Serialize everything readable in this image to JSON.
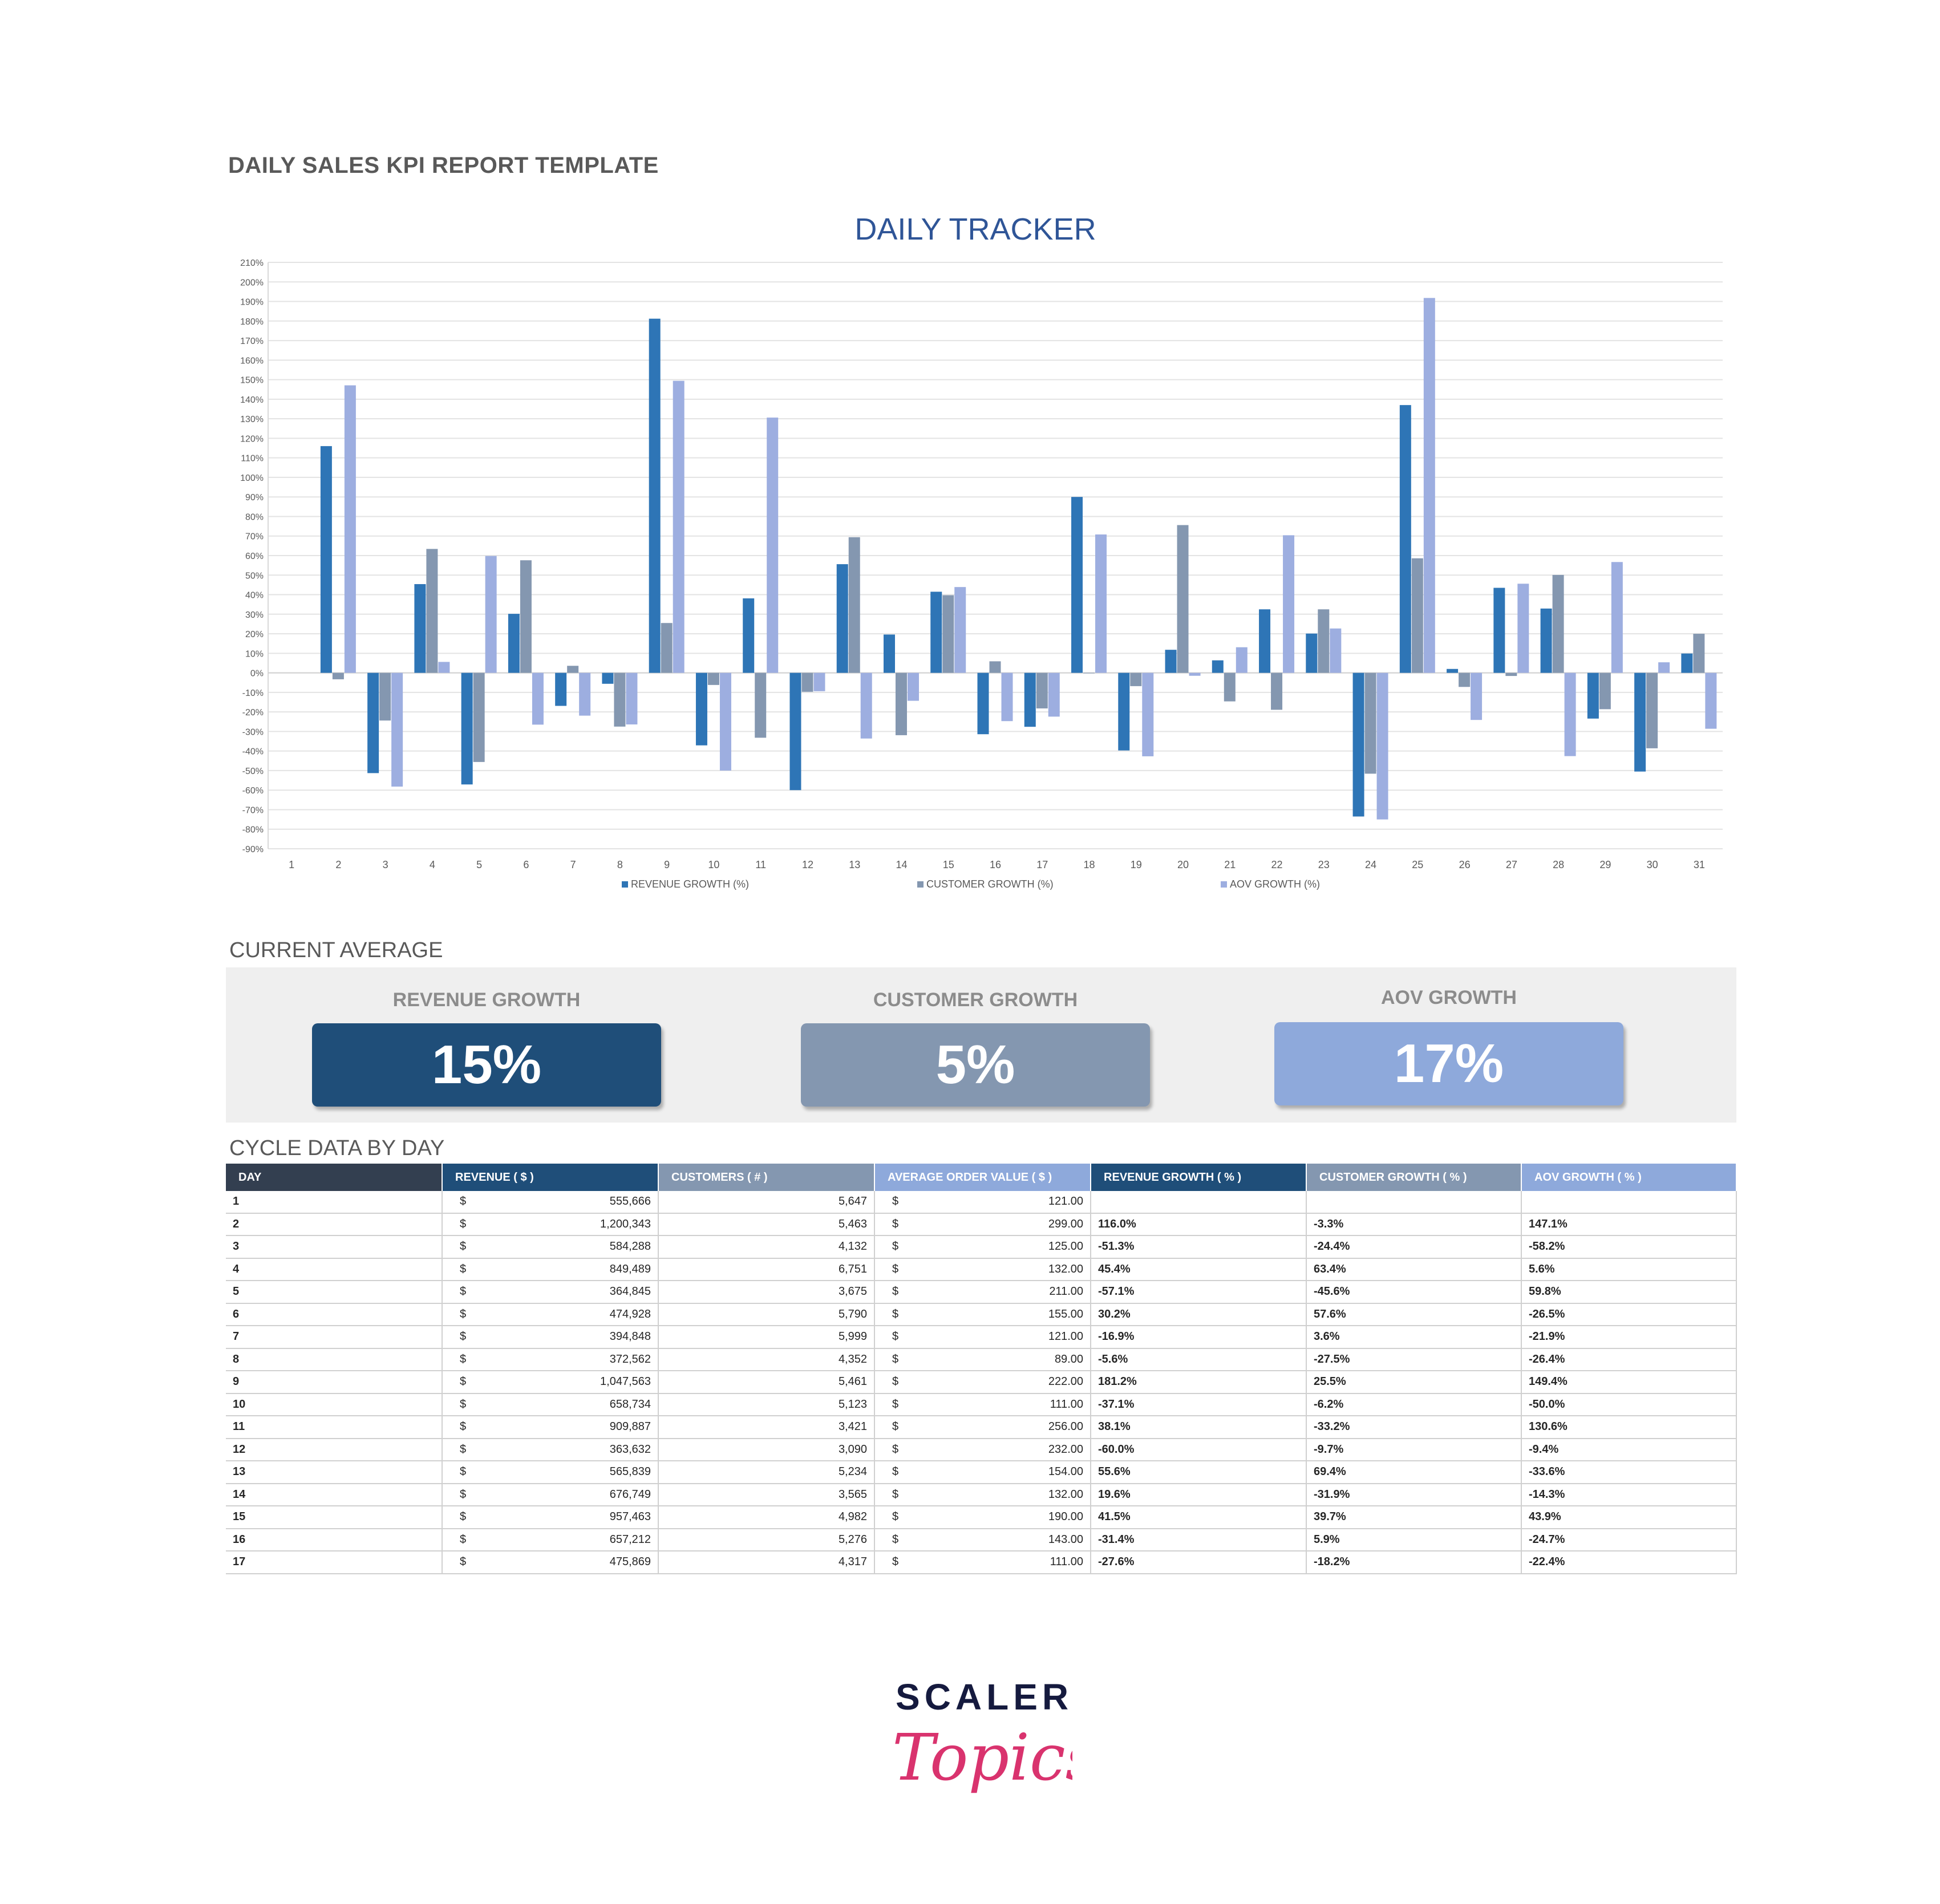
{
  "report_title": "DAILY SALES KPI REPORT TEMPLATE",
  "chart_data": {
    "type": "bar",
    "title": "DAILY TRACKER",
    "categories": [
      "1",
      "2",
      "3",
      "4",
      "5",
      "6",
      "7",
      "8",
      "9",
      "10",
      "11",
      "12",
      "13",
      "14",
      "15",
      "16",
      "17",
      "18",
      "19",
      "20",
      "21",
      "22",
      "23",
      "24",
      "25",
      "26",
      "27",
      "28",
      "29",
      "30",
      "31"
    ],
    "series": [
      {
        "name": "REVENUE GROWTH (%)",
        "color": "#2e75b6",
        "values": [
          null,
          116.0,
          -51.3,
          45.4,
          -57.1,
          30.2,
          -16.9,
          -5.6,
          181.2,
          -37.1,
          38.1,
          -60.0,
          55.6,
          19.6,
          41.5,
          -31.4,
          -27.6,
          90.0,
          -39.7,
          11.8,
          6.4,
          32.5,
          20.1,
          -73.5,
          137.0,
          2.0,
          43.5,
          32.9,
          -23.4,
          -50.5,
          9.9
        ]
      },
      {
        "name": "CUSTOMER GROWTH (%)",
        "color": "#8497b0",
        "values": [
          null,
          -3.3,
          -24.4,
          63.4,
          -45.6,
          57.6,
          3.6,
          -27.5,
          25.5,
          -6.2,
          -33.2,
          -9.7,
          69.4,
          -31.9,
          39.7,
          5.9,
          -18.2,
          0,
          -6.8,
          75.6,
          -14.6,
          -18.9,
          32.5,
          -51.6,
          58.6,
          -7.2,
          -1.6,
          50.1,
          -18.6,
          -38.6,
          20.0
        ]
      },
      {
        "name": "AOV GROWTH (%)",
        "color": "#9daee0",
        "values": [
          null,
          147.1,
          -58.2,
          5.6,
          59.8,
          -26.5,
          -21.9,
          -26.4,
          149.4,
          -50.0,
          130.6,
          -9.4,
          -33.6,
          -14.3,
          43.9,
          -24.7,
          -22.4,
          70.8,
          -42.7,
          -1.5,
          13.1,
          70.4,
          22.7,
          -75.0,
          191.8,
          -24.1,
          45.6,
          -42.6,
          56.7,
          5.4,
          -28.6
        ]
      }
    ],
    "ylim": [
      -90,
      210
    ],
    "y_ticks": [
      "210%",
      "200%",
      "190%",
      "180%",
      "170%",
      "160%",
      "150%",
      "140%",
      "130%",
      "120%",
      "110%",
      "100%",
      "90%",
      "80%",
      "70%",
      "60%",
      "50%",
      "40%",
      "30%",
      "20%",
      "10%",
      "0%",
      "-10%",
      "-20%",
      "-30%",
      "-40%",
      "-50%",
      "-60%",
      "-70%",
      "-80%",
      "-90%"
    ],
    "grid": true,
    "legend_position": "bottom"
  },
  "current_average": {
    "heading": "CURRENT AVERAGE",
    "revenue": {
      "label": "REVENUE GROWTH",
      "value": "15%",
      "color": "#1f4e79"
    },
    "customer": {
      "label": "CUSTOMER GROWTH",
      "value": "5%",
      "color": "#8497b0"
    },
    "aov": {
      "label": "AOV GROWTH",
      "value": "17%",
      "color": "#8ea9db"
    }
  },
  "cycle": {
    "heading": "CYCLE DATA BY DAY",
    "columns": [
      {
        "label": "DAY",
        "color": "#333f50"
      },
      {
        "label": "REVENUE ( $ )",
        "color": "#1f4e79"
      },
      {
        "label": "CUSTOMERS ( # )",
        "color": "#8497b0"
      },
      {
        "label": "AVERAGE ORDER VALUE ( $ )",
        "color": "#8ea9db"
      },
      {
        "label": "REVENUE GROWTH ( % )",
        "color": "#1f4e79"
      },
      {
        "label": "CUSTOMER GROWTH ( % )",
        "color": "#8497b0"
      },
      {
        "label": "AOV GROWTH ( % )",
        "color": "#8ea9db"
      }
    ],
    "currency_symbol": "$",
    "rows": [
      {
        "day": "1",
        "revenue": "555,666",
        "customers": "5,647",
        "aov": "121.00",
        "rg": "",
        "cg": "",
        "ag": ""
      },
      {
        "day": "2",
        "revenue": "1,200,343",
        "customers": "5,463",
        "aov": "299.00",
        "rg": "116.0%",
        "cg": "-3.3%",
        "ag": "147.1%"
      },
      {
        "day": "3",
        "revenue": "584,288",
        "customers": "4,132",
        "aov": "125.00",
        "rg": "-51.3%",
        "cg": "-24.4%",
        "ag": "-58.2%"
      },
      {
        "day": "4",
        "revenue": "849,489",
        "customers": "6,751",
        "aov": "132.00",
        "rg": "45.4%",
        "cg": "63.4%",
        "ag": "5.6%"
      },
      {
        "day": "5",
        "revenue": "364,845",
        "customers": "3,675",
        "aov": "211.00",
        "rg": "-57.1%",
        "cg": "-45.6%",
        "ag": "59.8%"
      },
      {
        "day": "6",
        "revenue": "474,928",
        "customers": "5,790",
        "aov": "155.00",
        "rg": "30.2%",
        "cg": "57.6%",
        "ag": "-26.5%"
      },
      {
        "day": "7",
        "revenue": "394,848",
        "customers": "5,999",
        "aov": "121.00",
        "rg": "-16.9%",
        "cg": "3.6%",
        "ag": "-21.9%"
      },
      {
        "day": "8",
        "revenue": "372,562",
        "customers": "4,352",
        "aov": "89.00",
        "rg": "-5.6%",
        "cg": "-27.5%",
        "ag": "-26.4%"
      },
      {
        "day": "9",
        "revenue": "1,047,563",
        "customers": "5,461",
        "aov": "222.00",
        "rg": "181.2%",
        "cg": "25.5%",
        "ag": "149.4%"
      },
      {
        "day": "10",
        "revenue": "658,734",
        "customers": "5,123",
        "aov": "111.00",
        "rg": "-37.1%",
        "cg": "-6.2%",
        "ag": "-50.0%"
      },
      {
        "day": "11",
        "revenue": "909,887",
        "customers": "3,421",
        "aov": "256.00",
        "rg": "38.1%",
        "cg": "-33.2%",
        "ag": "130.6%"
      },
      {
        "day": "12",
        "revenue": "363,632",
        "customers": "3,090",
        "aov": "232.00",
        "rg": "-60.0%",
        "cg": "-9.7%",
        "ag": "-9.4%"
      },
      {
        "day": "13",
        "revenue": "565,839",
        "customers": "5,234",
        "aov": "154.00",
        "rg": "55.6%",
        "cg": "69.4%",
        "ag": "-33.6%"
      },
      {
        "day": "14",
        "revenue": "676,749",
        "customers": "3,565",
        "aov": "132.00",
        "rg": "19.6%",
        "cg": "-31.9%",
        "ag": "-14.3%"
      },
      {
        "day": "15",
        "revenue": "957,463",
        "customers": "4,982",
        "aov": "190.00",
        "rg": "41.5%",
        "cg": "39.7%",
        "ag": "43.9%"
      },
      {
        "day": "16",
        "revenue": "657,212",
        "customers": "5,276",
        "aov": "143.00",
        "rg": "-31.4%",
        "cg": "5.9%",
        "ag": "-24.7%"
      },
      {
        "day": "17",
        "revenue": "475,869",
        "customers": "4,317",
        "aov": "111.00",
        "rg": "-27.6%",
        "cg": "-18.2%",
        "ag": "-22.4%"
      }
    ]
  },
  "logo": {
    "top": "SCALER",
    "script": "Topics",
    "top_color": "#151a3e",
    "script_color": "#d9336e"
  }
}
